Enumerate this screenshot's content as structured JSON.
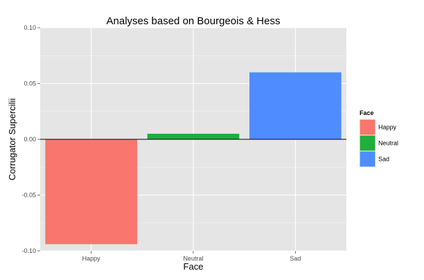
{
  "chart_data": {
    "type": "bar",
    "title": "Analyses based on Bourgeois & Hess",
    "xlabel": "Face",
    "ylabel": "Corrugator Supercilii",
    "categories": [
      "Happy",
      "Neutral",
      "Sad"
    ],
    "values": [
      -0.094,
      0.005,
      0.06
    ],
    "ylim": [
      -0.1,
      0.1
    ],
    "yticks": [
      -0.1,
      -0.05,
      0.0,
      0.05,
      0.1
    ],
    "ytick_labels": [
      "-0.10",
      "-0.05",
      "0.00",
      "0.05",
      "0.10"
    ],
    "grid": true,
    "zero_line": true,
    "legend": {
      "title": "Face",
      "position": "right",
      "entries": [
        "Happy",
        "Neutral",
        "Sad"
      ]
    },
    "colors": [
      "#F8766D",
      "#1FAF3A",
      "#4F8CFF"
    ],
    "panel_background": "#E5E5E5",
    "grid_color": "#FFFFFF"
  }
}
